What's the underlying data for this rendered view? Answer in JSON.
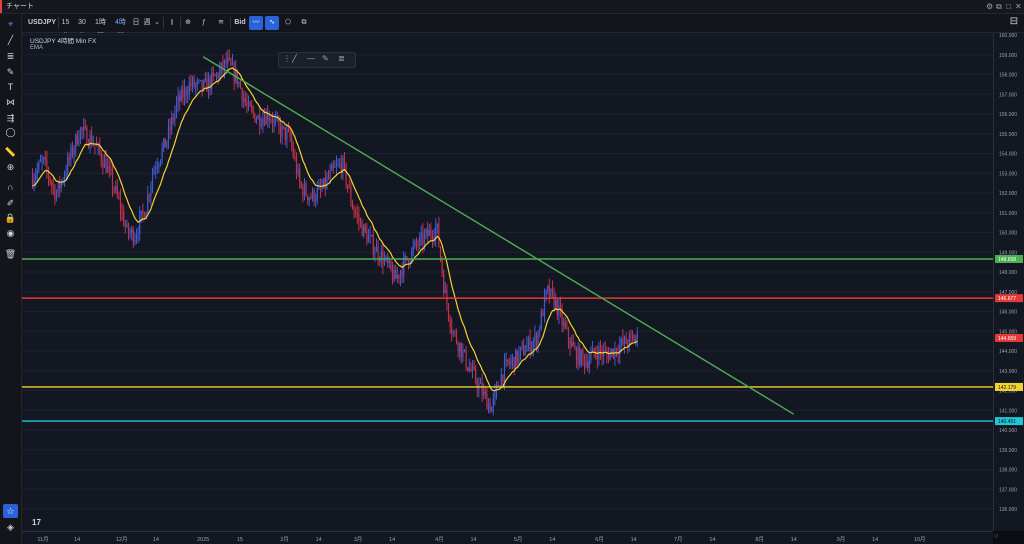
{
  "window": {
    "title": "チャート"
  },
  "toolbar": {
    "symbol": "USDJPY",
    "intervals": [
      "15分",
      "30分",
      "1時間",
      "4時間",
      "日",
      "週"
    ],
    "selected_interval": "4時間",
    "price_type": "Bid"
  },
  "legend": {
    "line1": "USDJPY 4時間 Min FX",
    "line2": "EMA"
  },
  "colors": {
    "background": "#131722",
    "candle_up": "#3f5bd0",
    "candle_down": "#c0324a",
    "ema": "#f5d131",
    "trendline": "#4caf50",
    "level_green": "#4caf50",
    "level_red": "#e53935",
    "level_yellow": "#f5d131",
    "level_cyan": "#22c5d6",
    "accent": "#2a62d9"
  },
  "icons": {
    "sidebar": [
      "cursor-icon",
      "trend-line-icon",
      "fib-icon",
      "brush-icon",
      "text-icon",
      "pattern-icon",
      "prediction-icon",
      "circle-icon",
      "ruler-icon",
      "zoom-icon",
      "magnet-icon",
      "lock-drawing-icon",
      "lock-icon",
      "eye-icon",
      "trash-icon",
      "watchlist-star-icon",
      "layers-icon"
    ]
  },
  "chart_data": {
    "type": "candlestick",
    "symbol": "USDJPY",
    "timeframe": "4時間",
    "y_ticks": [
      136.0,
      137.0,
      138.0,
      139.0,
      140.0,
      141.0,
      142.0,
      143.0,
      144.0,
      145.0,
      146.0,
      147.0,
      148.0,
      149.0,
      150.0,
      151.0,
      152.0,
      153.0,
      154.0,
      155.0,
      156.0,
      157.0,
      158.0,
      159.0,
      160.0
    ],
    "x_tick_labels": [
      "11月",
      "14",
      "12月",
      "14",
      "2025",
      "15",
      "2月",
      "14",
      "3月",
      "14",
      "4月",
      "14",
      "5月",
      "14",
      "6月",
      "14",
      "7月",
      "14",
      "8月",
      "14",
      "9月",
      "14",
      "10月"
    ],
    "price_tag_labels": [
      "148.658",
      "146.677",
      "144.659",
      "142.179",
      "140.451"
    ],
    "horizontal_levels": [
      {
        "price": 148.658,
        "color": "green"
      },
      {
        "price": 146.677,
        "color": "red"
      },
      {
        "price": 142.179,
        "color": "yellow"
      },
      {
        "price": 140.451,
        "color": "cyan"
      }
    ],
    "last_price": 144.659,
    "trendline": {
      "from": {
        "date": "2025-01-01",
        "price": 158.9
      },
      "to": {
        "date": "2025-08-14",
        "price": 140.8
      }
    },
    "price_path": [
      [
        "2024-10-28",
        152.8
      ],
      [
        "2024-11-01",
        153.6
      ],
      [
        "2024-11-06",
        151.9
      ],
      [
        "2024-11-10",
        153.3
      ],
      [
        "2024-11-15",
        155.2
      ],
      [
        "2024-11-20",
        154.6
      ],
      [
        "2024-11-25",
        153.4
      ],
      [
        "2024-11-30",
        151.5
      ],
      [
        "2024-12-03",
        150.0
      ],
      [
        "2024-12-06",
        149.9
      ],
      [
        "2024-12-10",
        151.2
      ],
      [
        "2024-12-13",
        153.2
      ],
      [
        "2024-12-18",
        154.6
      ],
      [
        "2024-12-22",
        156.5
      ],
      [
        "2024-12-27",
        157.5
      ],
      [
        "2025-01-01",
        157.3
      ],
      [
        "2025-01-06",
        157.9
      ],
      [
        "2025-01-10",
        158.6
      ],
      [
        "2025-01-14",
        157.8
      ],
      [
        "2025-01-18",
        156.2
      ],
      [
        "2025-01-22",
        155.8
      ],
      [
        "2025-01-26",
        156.0
      ],
      [
        "2025-01-30",
        155.2
      ],
      [
        "2025-02-03",
        154.8
      ],
      [
        "2025-02-07",
        152.3
      ],
      [
        "2025-02-11",
        151.8
      ],
      [
        "2025-02-15",
        152.1
      ],
      [
        "2025-02-19",
        153.0
      ],
      [
        "2025-02-23",
        153.5
      ],
      [
        "2025-02-27",
        151.3
      ],
      [
        "2025-03-03",
        150.1
      ],
      [
        "2025-03-07",
        149.3
      ],
      [
        "2025-03-11",
        148.6
      ],
      [
        "2025-03-15",
        147.6
      ],
      [
        "2025-03-19",
        148.5
      ],
      [
        "2025-03-23",
        149.3
      ],
      [
        "2025-03-27",
        149.8
      ],
      [
        "2025-03-31",
        150.3
      ],
      [
        "2025-04-03",
        147.0
      ],
      [
        "2025-04-06",
        145.0
      ],
      [
        "2025-04-09",
        144.2
      ],
      [
        "2025-04-12",
        143.2
      ],
      [
        "2025-04-15",
        142.5
      ],
      [
        "2025-04-18",
        141.7
      ],
      [
        "2025-04-21",
        141.1
      ],
      [
        "2025-04-24",
        142.6
      ],
      [
        "2025-04-27",
        143.3
      ],
      [
        "2025-04-30",
        143.6
      ],
      [
        "2025-05-04",
        144.2
      ],
      [
        "2025-05-08",
        144.6
      ],
      [
        "2025-05-12",
        147.0
      ],
      [
        "2025-05-15",
        146.5
      ],
      [
        "2025-05-19",
        145.0
      ],
      [
        "2025-05-23",
        143.8
      ],
      [
        "2025-05-27",
        143.5
      ],
      [
        "2025-05-31",
        144.0
      ],
      [
        "2025-06-04",
        143.8
      ],
      [
        "2025-06-08",
        144.2
      ],
      [
        "2025-06-12",
        144.5
      ],
      [
        "2025-06-16",
        144.7
      ]
    ]
  }
}
